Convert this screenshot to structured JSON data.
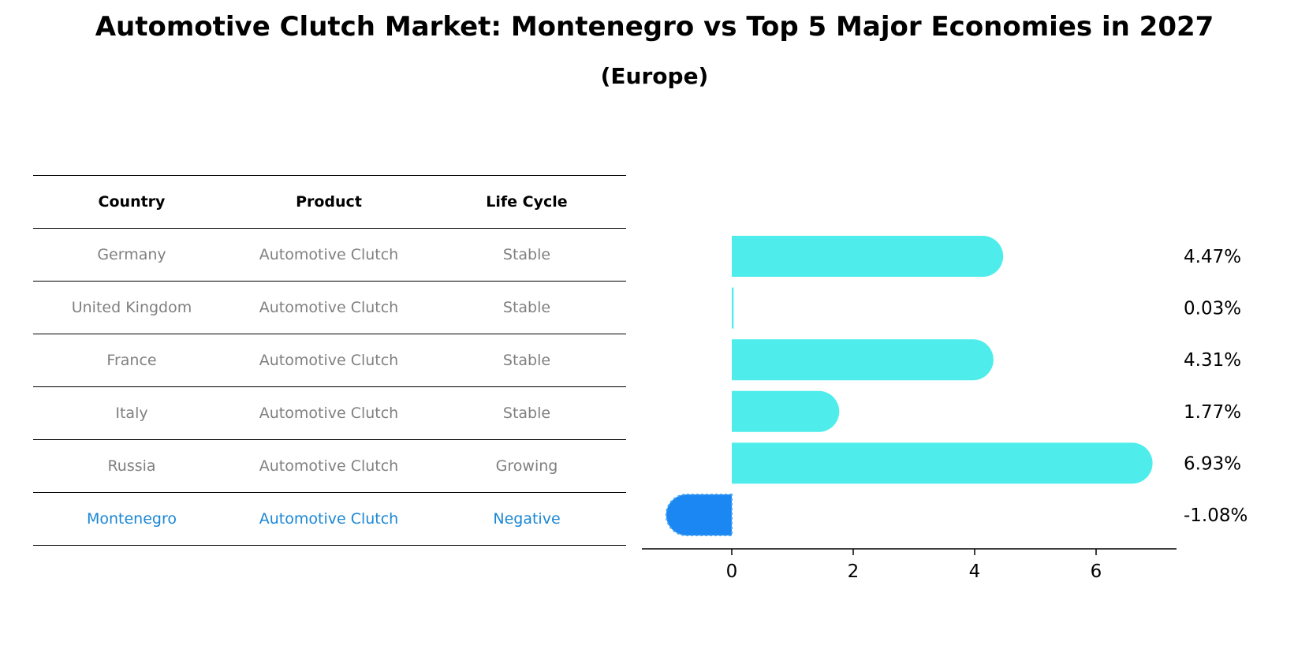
{
  "title": "Automotive Clutch Market: Montenegro vs Top 5 Major Economies in 2027",
  "subtitle": "(Europe)",
  "table": {
    "headers": [
      "Country",
      "Product",
      "Life Cycle"
    ],
    "rows": [
      [
        "Germany",
        "Automotive Clutch",
        "Stable"
      ],
      [
        "United Kingdom",
        "Automotive Clutch",
        "Stable"
      ],
      [
        "France",
        "Automotive Clutch",
        "Stable"
      ],
      [
        "Italy",
        "Automotive Clutch",
        "Stable"
      ],
      [
        "Russia",
        "Automotive Clutch",
        "Growing"
      ],
      [
        "Montenegro",
        "Automotive Clutch",
        "Negative"
      ]
    ],
    "highlight_row": 5
  },
  "chart_data": {
    "type": "bar",
    "orientation": "horizontal",
    "categories": [
      "Germany",
      "United Kingdom",
      "France",
      "Italy",
      "Russia",
      "Montenegro"
    ],
    "values": [
      4.47,
      0.03,
      4.31,
      1.77,
      6.93,
      -1.08
    ],
    "value_labels": [
      "4.47%",
      "0.03%",
      "4.31%",
      "1.77%",
      "6.93%",
      "-1.08%"
    ],
    "xlim": [
      -1.5,
      7.4
    ],
    "xticks": [
      0,
      2,
      4,
      6
    ],
    "xtick_labels": [
      "0",
      "2",
      "4",
      "6"
    ],
    "colors": {
      "default": "#4eedeb",
      "highlight": "#1a87f2"
    },
    "highlight_index": 5,
    "grid": false
  }
}
